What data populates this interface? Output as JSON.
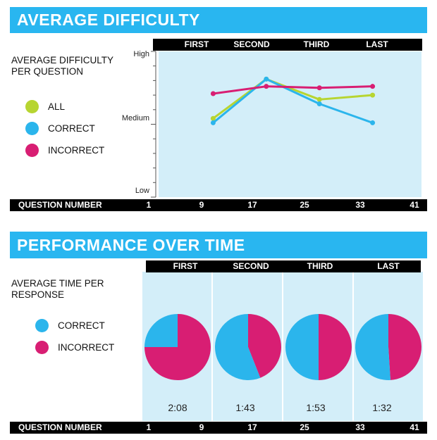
{
  "section1": {
    "title": "AVERAGE DIFFICULTY",
    "side_label": "AVERAGE DIFFICULTY PER QUESTION",
    "legend": [
      {
        "label": "ALL",
        "color": "#b7d531"
      },
      {
        "label": "CORRECT",
        "color": "#2bb5ec"
      },
      {
        "label": "INCORRECT",
        "color": "#d81e73"
      }
    ],
    "quartiles": [
      "FIRST",
      "SECOND",
      "THIRD",
      "LAST"
    ],
    "x_axis_label": "QUESTION NUMBER",
    "x_ticks": [
      "1",
      "9",
      "17",
      "25",
      "33",
      "41"
    ],
    "y_labels": {
      "high": "High",
      "medium": "Medium",
      "low": "Low"
    }
  },
  "section2": {
    "title": "PERFORMANCE OVER TIME",
    "side_label": "AVERAGE TIME PER RESPONSE",
    "legend": [
      {
        "label": "CORRECT",
        "color": "#2bb5ec"
      },
      {
        "label": "INCORRECT",
        "color": "#d81e73"
      }
    ],
    "quartiles": [
      "FIRST",
      "SECOND",
      "THIRD",
      "LAST"
    ],
    "times": [
      "2:08",
      "1:43",
      "1:53",
      "1:32"
    ],
    "x_axis_label": "QUESTION NUMBER",
    "x_ticks": [
      "1",
      "9",
      "17",
      "25",
      "33",
      "41"
    ]
  },
  "chart_data": [
    {
      "type": "line",
      "title": "AVERAGE DIFFICULTY",
      "ylabel": "AVERAGE DIFFICULTY PER QUESTION",
      "xlabel": "QUESTION NUMBER",
      "x": [
        9,
        17,
        25,
        33
      ],
      "categories": [
        "FIRST",
        "SECOND",
        "THIRD",
        "LAST"
      ],
      "ylim": [
        0,
        1
      ],
      "y_ticks": [
        "Low",
        "Medium",
        "High"
      ],
      "series": [
        {
          "name": "ALL",
          "color": "#b7d531",
          "values": [
            0.54,
            0.81,
            0.67,
            0.7
          ]
        },
        {
          "name": "CORRECT",
          "color": "#2bb5ec",
          "values": [
            0.51,
            0.81,
            0.64,
            0.51
          ]
        },
        {
          "name": "INCORRECT",
          "color": "#d81e73",
          "values": [
            0.71,
            0.76,
            0.75,
            0.76
          ]
        }
      ]
    },
    {
      "type": "pie",
      "title": "PERFORMANCE OVER TIME",
      "subtitle": "AVERAGE TIME PER RESPONSE",
      "categories": [
        "FIRST",
        "SECOND",
        "THIRD",
        "LAST"
      ],
      "labels": [
        "2:08",
        "1:43",
        "1:53",
        "1:32"
      ],
      "series": [
        {
          "name": "CORRECT",
          "color": "#2bb5ec",
          "values": [
            0.25,
            0.56,
            0.5,
            0.51
          ]
        },
        {
          "name": "INCORRECT",
          "color": "#d81e73",
          "values": [
            0.75,
            0.44,
            0.5,
            0.49
          ]
        }
      ]
    }
  ]
}
